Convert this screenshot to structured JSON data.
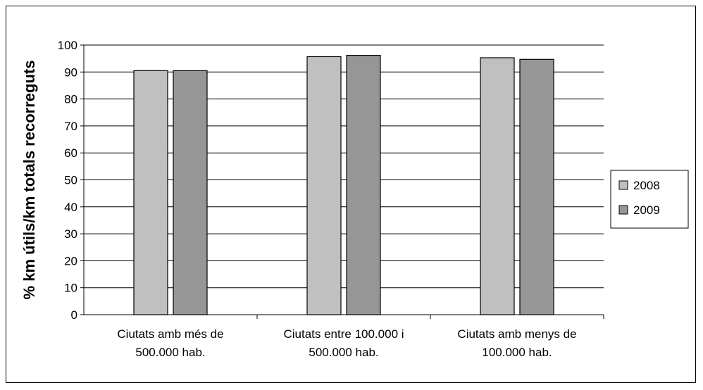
{
  "chart_data": {
    "type": "bar",
    "title": "",
    "xlabel": "",
    "ylabel": "% km útils/km totals recorreguts",
    "ylim": [
      0,
      100
    ],
    "yticks": [
      0,
      10,
      20,
      30,
      40,
      50,
      60,
      70,
      80,
      90,
      100
    ],
    "grid": true,
    "legend_position": "right",
    "categories": [
      [
        "Ciutats amb més de",
        "500.000 hab."
      ],
      [
        "Ciutats entre 100.000 i",
        "500.000 hab."
      ],
      [
        "Ciutats amb menys de",
        "100.000 hab."
      ]
    ],
    "series": [
      {
        "name": "2008",
        "color": "#c0c0c0",
        "values": [
          90.5,
          95.7,
          95.3
        ]
      },
      {
        "name": "2009",
        "color": "#969696",
        "values": [
          90.5,
          96.2,
          94.7
        ]
      }
    ]
  }
}
